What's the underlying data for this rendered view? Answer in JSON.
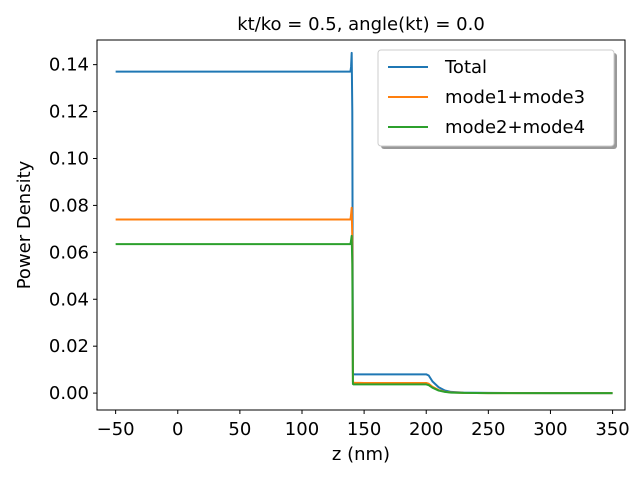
{
  "chart_data": {
    "type": "line",
    "title": "kt/ko = 0.5, angle(kt) = 0.0",
    "xlabel": "z (nm)",
    "ylabel": "Power Density",
    "xlim": [
      -65,
      360
    ],
    "ylim": [
      -0.0072,
      0.1505
    ],
    "xticks": [
      -50,
      0,
      50,
      100,
      150,
      200,
      250,
      300,
      350
    ],
    "xtick_labels": [
      "−50",
      "0",
      "50",
      "100",
      "150",
      "200",
      "250",
      "300",
      "350"
    ],
    "yticks": [
      0.0,
      0.02,
      0.04,
      0.06,
      0.08,
      0.1,
      0.12,
      0.14
    ],
    "ytick_labels": [
      "0.00",
      "0.02",
      "0.04",
      "0.06",
      "0.08",
      "0.10",
      "0.12",
      "0.14"
    ],
    "legend_position": "top-right",
    "series": [
      {
        "name": "Total",
        "color": "#1f77b4",
        "x": [
          -50,
          138,
          139,
          139.5,
          140,
          140.5,
          141,
          141.5,
          142,
          150,
          195,
          200,
          202,
          205,
          210,
          215,
          220,
          230,
          250,
          300,
          350
        ],
        "y": [
          0.137,
          0.137,
          0.137,
          0.139,
          0.145,
          0.12,
          0.0085,
          0.008,
          0.008,
          0.008,
          0.008,
          0.008,
          0.0075,
          0.005,
          0.0025,
          0.0011,
          0.0005,
          0.0002,
          0.0001,
          0.0,
          0.0
        ]
      },
      {
        "name": "mode1+mode3",
        "color": "#ff7f0e",
        "x": [
          -50,
          138,
          139,
          139.5,
          140,
          140.5,
          141,
          141.5,
          142,
          150,
          195,
          200,
          202,
          205,
          210,
          215,
          220,
          230,
          250,
          300,
          350
        ],
        "y": [
          0.074,
          0.074,
          0.074,
          0.076,
          0.079,
          0.066,
          0.0048,
          0.0045,
          0.0044,
          0.0043,
          0.0043,
          0.0043,
          0.004,
          0.0027,
          0.0013,
          0.0006,
          0.0003,
          0.0001,
          0.0,
          0.0,
          0.0
        ]
      },
      {
        "name": "mode2+mode4",
        "color": "#2ca02c",
        "x": [
          -50,
          138,
          139,
          139.5,
          140,
          140.5,
          141,
          141.5,
          142,
          150,
          195,
          200,
          202,
          205,
          210,
          215,
          220,
          230,
          250,
          300,
          350
        ],
        "y": [
          0.0635,
          0.0635,
          0.0635,
          0.065,
          0.067,
          0.055,
          0.0039,
          0.0037,
          0.0037,
          0.0037,
          0.0037,
          0.0037,
          0.0034,
          0.0023,
          0.0011,
          0.0005,
          0.0002,
          0.0001,
          0.0,
          0.0,
          0.0
        ]
      }
    ]
  }
}
